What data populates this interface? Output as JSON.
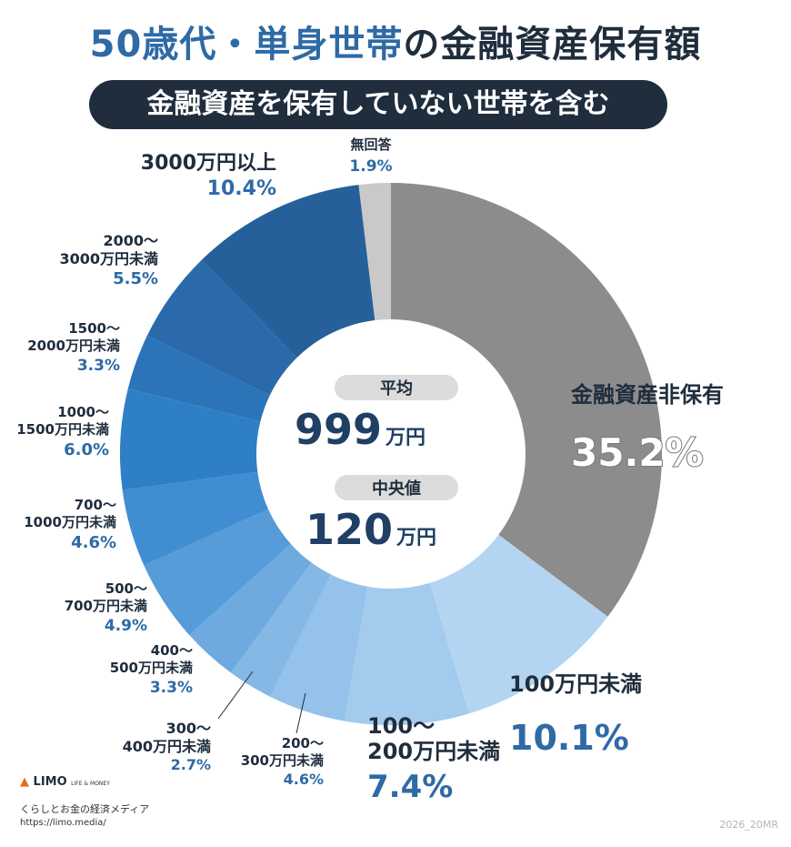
{
  "title": {
    "highlight": "50歳代・単身世帯",
    "rest": "の金融資産保有額"
  },
  "subtitle": "金融資産を保有していない世帯を含む",
  "center": {
    "avg_label": "平均",
    "avg_value": "999",
    "avg_unit": "万円",
    "median_label": "中央値",
    "median_value": "120",
    "median_unit": "万円"
  },
  "chart_data": {
    "type": "pie",
    "donut": true,
    "start": "top, clockwise",
    "slices": [
      {
        "label": "金融資産非保有",
        "value": 35.2,
        "text": "35.2%",
        "color": "#8c8c8c"
      },
      {
        "label": "100万円未満",
        "value": 10.1,
        "text": "10.1%",
        "color": "#b4d5f1"
      },
      {
        "label": "100〜 200万円未満",
        "value": 7.4,
        "text": "7.4%",
        "color": "#a3cbed"
      },
      {
        "label": "200〜 300万円未満",
        "value": 4.6,
        "text": "4.6%",
        "color": "#94c2ea"
      },
      {
        "label": "300〜 400万円未満",
        "value": 2.7,
        "text": "2.7%",
        "color": "#85b8e5"
      },
      {
        "label": "400〜 500万円未満",
        "value": 3.3,
        "text": "3.3%",
        "color": "#6eaae0"
      },
      {
        "label": "500〜 700万円未満",
        "value": 4.9,
        "text": "4.9%",
        "color": "#559cd9"
      },
      {
        "label": "700〜 1000万円未満",
        "value": 4.6,
        "text": "4.6%",
        "color": "#418dd1"
      },
      {
        "label": "1000〜 1500万円未満",
        "value": 6.0,
        "text": "6.0%",
        "color": "#2f7fc6"
      },
      {
        "label": "1500〜 2000万円未満",
        "value": 3.3,
        "text": "3.3%",
        "color": "#2b74b8"
      },
      {
        "label": "2000〜 3000万円未満",
        "value": 5.5,
        "text": "5.5%",
        "color": "#2a6aaa"
      },
      {
        "label": "3000万円以上",
        "value": 10.4,
        "text": "10.4%",
        "color": "#25609a"
      },
      {
        "label": "無回答",
        "value": 1.9,
        "text": "1.9%",
        "color": "#c9c9c9"
      }
    ]
  },
  "brand": {
    "logo": "LIMO",
    "logo_sub": "LIFE & MONEY",
    "tagline": "くらしとお金の経済メディア",
    "url": "https://limo.media/"
  },
  "stamp": "2026_20MR"
}
